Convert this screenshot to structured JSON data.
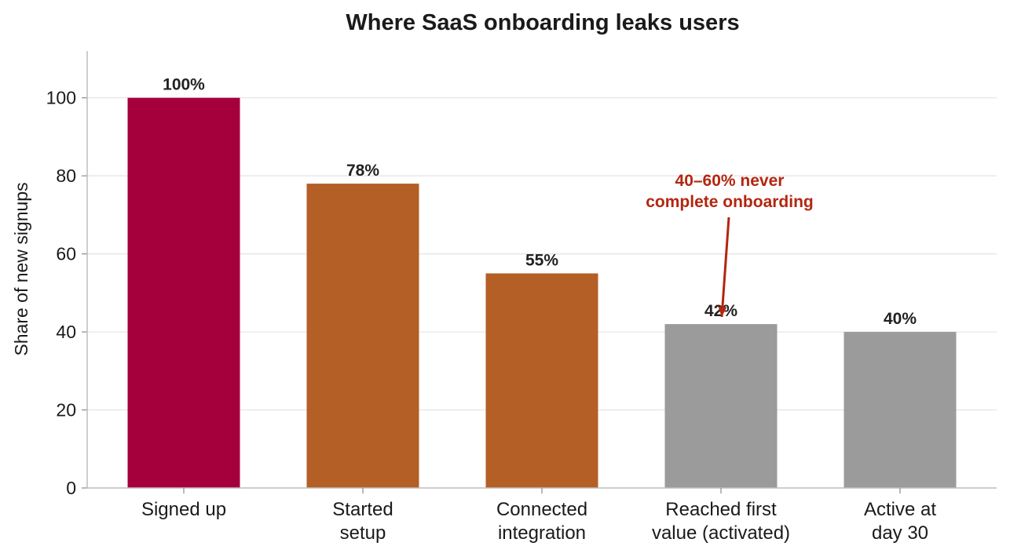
{
  "chart_data": {
    "type": "bar",
    "title": "Where SaaS onboarding leaks users",
    "ylabel": "Share of new signups",
    "xlabel": "",
    "ylim": [
      0,
      112
    ],
    "yticks": [
      0,
      20,
      40,
      60,
      80,
      100
    ],
    "grid": true,
    "categories": [
      [
        "Signed up"
      ],
      [
        "Started",
        "setup"
      ],
      [
        "Connected",
        "integration"
      ],
      [
        "Reached first",
        "value (activated)"
      ],
      [
        "Active at",
        "day 30"
      ]
    ],
    "values": [
      100,
      78,
      55,
      42,
      40
    ],
    "data_labels": [
      "100%",
      "78%",
      "55%",
      "42%",
      "40%"
    ],
    "colors": [
      "#a6003c",
      "#b45f26",
      "#b45f26",
      "#9b9b9b",
      "#9b9b9b"
    ],
    "annotation": {
      "lines": [
        "40–60% never",
        "complete onboarding"
      ],
      "target_category_index": 3,
      "color": "#b3260f"
    }
  }
}
